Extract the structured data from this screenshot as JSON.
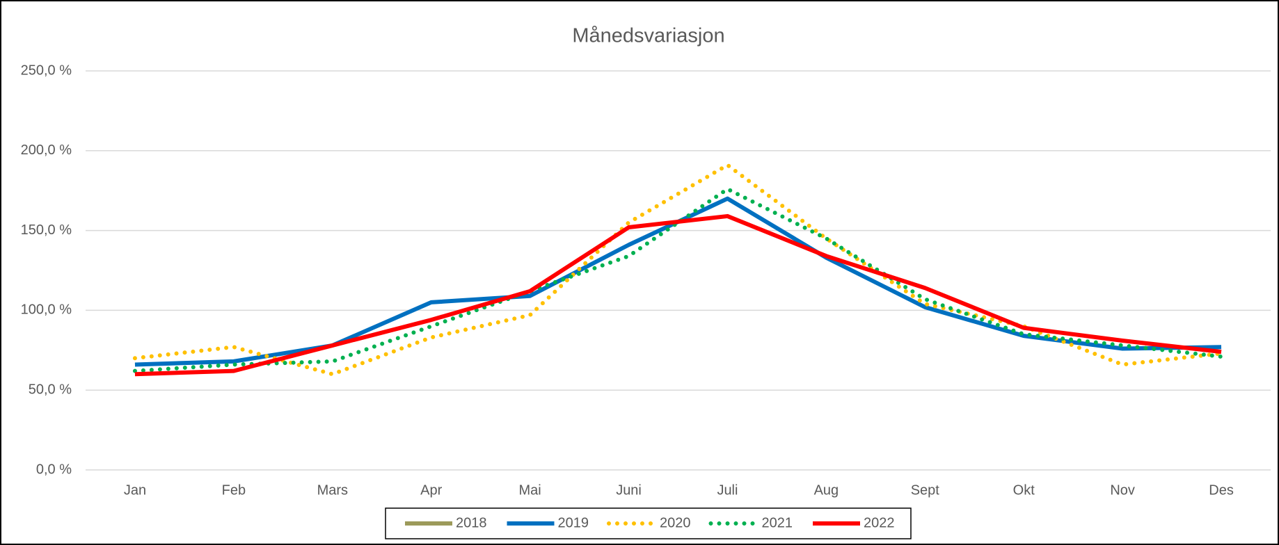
{
  "chart_data": {
    "type": "line",
    "title": "Månedsvariasjon",
    "categories": [
      "Jan",
      "Feb",
      "Mars",
      "Apr",
      "Mai",
      "Juni",
      "Juli",
      "Aug",
      "Sept",
      "Okt",
      "Nov",
      "Des"
    ],
    "series": [
      {
        "name": "2018",
        "color": "#9c9a5a",
        "style": "solid",
        "values": [
          null,
          null,
          null,
          null,
          null,
          null,
          null,
          null,
          null,
          null,
          null,
          null
        ]
      },
      {
        "name": "2019",
        "color": "#0070c0",
        "style": "solid",
        "values": [
          66,
          68,
          78,
          105,
          109,
          141,
          170,
          133,
          102,
          84,
          76,
          77
        ]
      },
      {
        "name": "2020",
        "color": "#ffc000",
        "style": "dotted",
        "values": [
          70,
          77,
          60,
          83,
          97,
          155,
          191,
          145,
          104,
          90,
          66,
          73
        ]
      },
      {
        "name": "2021",
        "color": "#00b050",
        "style": "dotted",
        "values": [
          62,
          66,
          68,
          90,
          112,
          134,
          176,
          145,
          107,
          85,
          78,
          71
        ]
      },
      {
        "name": "2022",
        "color": "#ff0000",
        "style": "solid",
        "values": [
          60,
          62,
          78,
          94,
          112,
          152,
          159,
          134,
          114,
          89,
          81,
          74
        ]
      }
    ],
    "ylim": [
      0,
      250
    ],
    "yticks": [
      {
        "value": 0,
        "label": "0,0 %"
      },
      {
        "value": 50,
        "label": "50,0 %"
      },
      {
        "value": 100,
        "label": "100,0 %"
      },
      {
        "value": 150,
        "label": "150,0 %"
      },
      {
        "value": 200,
        "label": "200,0 %"
      },
      {
        "value": 250,
        "label": "250,0 %"
      }
    ],
    "grid": true,
    "legend": "bottom"
  }
}
